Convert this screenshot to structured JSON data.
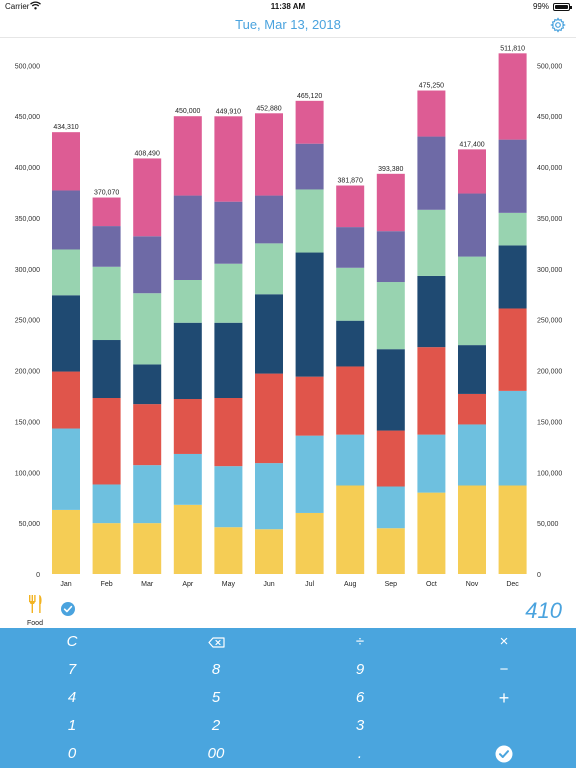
{
  "status_bar": {
    "carrier": "Carrier",
    "time": "11:38 AM",
    "battery": "99%"
  },
  "header": {
    "date": "Tue, Mar 13, 2018",
    "settings_icon": "gear-icon",
    "accent_color": "#4aa3de"
  },
  "chart_data": {
    "type": "bar",
    "stacked": true,
    "categories": [
      "Jan",
      "Feb",
      "Mar",
      "Apr",
      "May",
      "Jun",
      "Jul",
      "Aug",
      "Sep",
      "Oct",
      "Nov",
      "Dec"
    ],
    "totals": [
      434310,
      370070,
      408490,
      450000,
      449910,
      452880,
      465120,
      381870,
      393380,
      475250,
      417400,
      511810
    ],
    "total_labels": [
      "434,310",
      "370,070",
      "408,490",
      "450,000",
      "449,910",
      "452,880",
      "465,120",
      "381,870",
      "393,380",
      "475,250",
      "417,400",
      "511,810"
    ],
    "ylim": [
      0,
      520000
    ],
    "yticks": [
      0,
      50000,
      100000,
      150000,
      200000,
      250000,
      300000,
      350000,
      400000,
      450000,
      500000
    ],
    "ytick_labels": [
      "0",
      "50,000",
      "100,000",
      "150,000",
      "200,000",
      "250,000",
      "300,000",
      "350,000",
      "400,000",
      "450,000",
      "500,000"
    ],
    "y_axis_both_sides": true,
    "grid": false,
    "series": [
      {
        "color": "#f5cd55",
        "values": [
          63000,
          50000,
          50000,
          68000,
          46000,
          44000,
          60000,
          87000,
          45000,
          80000,
          87000,
          87000
        ]
      },
      {
        "color": "#6ec0df",
        "values": [
          80000,
          38000,
          57000,
          50000,
          60000,
          65000,
          76000,
          50000,
          41000,
          57000,
          60000,
          93000
        ]
      },
      {
        "color": "#e0554b",
        "values": [
          56000,
          85000,
          60000,
          54000,
          67000,
          88000,
          58000,
          67000,
          55000,
          86000,
          30000,
          81000
        ]
      },
      {
        "color": "#1f4a72",
        "values": [
          75000,
          57000,
          39000,
          75000,
          74000,
          78000,
          122000,
          45000,
          80000,
          70000,
          48000,
          62000
        ]
      },
      {
        "color": "#98d3b0",
        "values": [
          45000,
          72000,
          70000,
          42000,
          58000,
          50000,
          62000,
          52000,
          66000,
          65000,
          87000,
          32000
        ]
      },
      {
        "color": "#6e6aa6",
        "values": [
          58000,
          40000,
          56000,
          83000,
          61000,
          47000,
          45000,
          40000,
          50000,
          72000,
          62000,
          72000
        ]
      },
      {
        "color": "#dd5c94",
        "values": [
          57310,
          28070,
          76490,
          78000,
          83910,
          80880,
          42120,
          40870,
          56380,
          45250,
          43400,
          84810
        ]
      }
    ]
  },
  "category": {
    "icon": "fork-knife-icon",
    "label": "Food",
    "icon_color": "#f2b321",
    "selected_icon": "check-circle-icon"
  },
  "amount": "410",
  "keypad": {
    "color": "#4aa5de",
    "rows": [
      [
        "C",
        "backspace",
        "÷",
        "×"
      ],
      [
        "7",
        "8",
        "9",
        "−"
      ],
      [
        "4",
        "5",
        "6",
        "+"
      ],
      [
        "1",
        "2",
        "3",
        ""
      ],
      [
        "0",
        "00",
        ".",
        "confirm"
      ]
    ]
  }
}
